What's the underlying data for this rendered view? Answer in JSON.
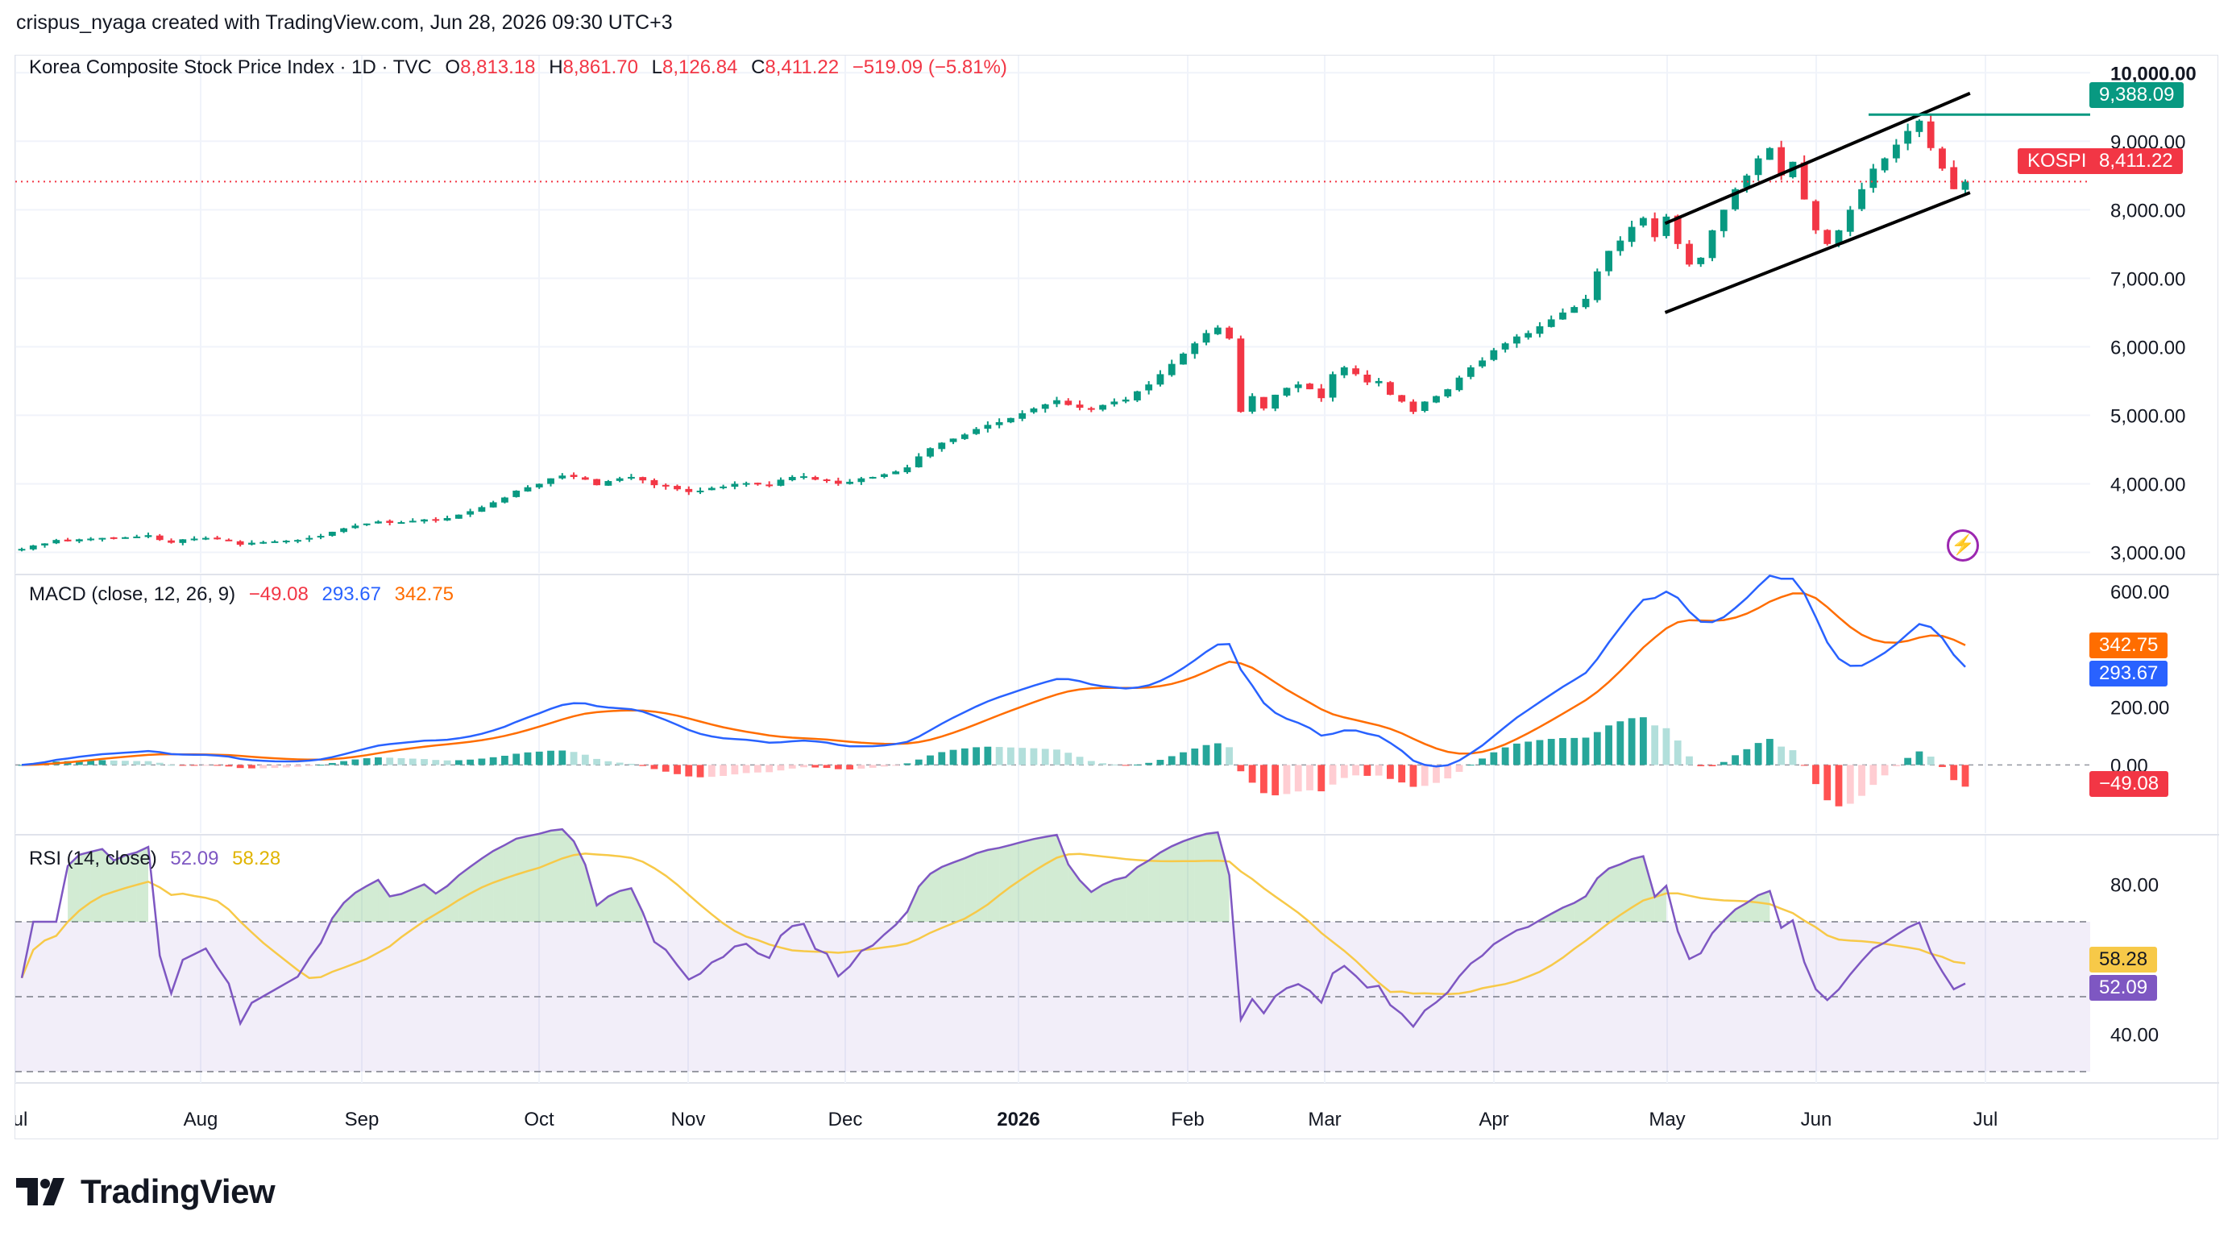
{
  "header": {
    "note": "crispus_nyaga created with TradingView.com, Jun 28, 2026 09:30 UTC+3"
  },
  "price_legend": {
    "title": "Korea Composite Stock Price Index · 1D · TVC",
    "o_label": "O",
    "o_value": "8,813.18",
    "h_label": "H",
    "h_value": "8,861.70",
    "l_label": "L",
    "l_value": "8,126.84",
    "c_label": "C",
    "c_value": "8,411.22",
    "change": "−519.09 (−5.81%)"
  },
  "macd_legend": {
    "title": "MACD (close, 12, 26, 9)",
    "hist": "−49.08",
    "macd": "293.67",
    "signal": "342.75"
  },
  "rsi_legend": {
    "title": "RSI (14, close)",
    "rsi": "52.09",
    "ma": "58.28"
  },
  "tags": {
    "resistance": "9,388.09",
    "symbol": "KOSPI",
    "last_price": "8,411.22",
    "macd_signal": "342.75",
    "macd_line": "293.67",
    "macd_hist": "−49.08",
    "rsi_ma": "58.28",
    "rsi_value": "52.09"
  },
  "colors": {
    "up": "#089981",
    "down": "#f23645",
    "macd": "#2962ff",
    "signal": "#ff6d00",
    "rsi": "#7e57c2",
    "rsi_ma": "#f7c948",
    "resistance": "#089981"
  },
  "logo": {
    "text": "TradingView"
  },
  "lightning_icon": "lightning-icon",
  "chart_data": [
    {
      "type": "candlestick",
      "title": "Korea Composite Stock Price Index",
      "y_ticks": [
        "10,000.00",
        "9,000.00",
        "8,000.00",
        "7,000.00",
        "6,000.00",
        "5,000.00",
        "4,000.00",
        "3,000.00"
      ],
      "ylim": [
        2700,
        10250
      ],
      "x_ticks": [
        "Jul",
        "Aug",
        "Sep",
        "Oct",
        "Nov",
        "Dec",
        "2026",
        "Feb",
        "Mar",
        "Apr",
        "May",
        "Jun",
        "Jul"
      ],
      "closes": [
        3050,
        3100,
        3130,
        3180,
        3160,
        3190,
        3200,
        3210,
        3205,
        3220,
        3230,
        3250,
        3180,
        3140,
        3190,
        3200,
        3210,
        3190,
        3170,
        3110,
        3140,
        3150,
        3160,
        3170,
        3180,
        3210,
        3240,
        3300,
        3350,
        3390,
        3420,
        3450,
        3430,
        3440,
        3460,
        3480,
        3470,
        3500,
        3550,
        3600,
        3660,
        3730,
        3800,
        3900,
        3950,
        4000,
        4080,
        4120,
        4100,
        4060,
        3980,
        4040,
        4080,
        4100,
        4050,
        3980,
        3960,
        3920,
        3880,
        3900,
        3940,
        3960,
        4000,
        4010,
        3990,
        3980,
        4060,
        4100,
        4110,
        4060,
        4050,
        4000,
        4030,
        4080,
        4100,
        4140,
        4180,
        4240,
        4400,
        4520,
        4600,
        4660,
        4720,
        4800,
        4860,
        4900,
        4960,
        5030,
        5100,
        5160,
        5220,
        5150,
        5110,
        5080,
        5150,
        5200,
        5230,
        5350,
        5450,
        5600,
        5750,
        5900,
        6050,
        6200,
        6280,
        6120,
        5050,
        5280,
        5100,
        5300,
        5400,
        5450,
        5380,
        5250,
        5600,
        5700,
        5600,
        5480,
        5500,
        5300,
        5200,
        5050,
        5200,
        5280,
        5380,
        5550,
        5700,
        5800,
        5950,
        6050,
        6150,
        6200,
        6300,
        6400,
        6500,
        6580,
        6700,
        7100,
        7400,
        7550,
        7750,
        7880,
        7600,
        7900,
        7500,
        7200,
        7300,
        7700,
        8000,
        8300,
        8500,
        8750,
        8900,
        8500,
        8700,
        8150,
        7700,
        7500,
        7700,
        8000,
        8300,
        8600,
        8750,
        8950,
        9150,
        9300,
        8900,
        8600,
        8300,
        8411
      ],
      "channel_upper": [
        [
          8040,
          7800
        ],
        [
          9950,
          9700
        ]
      ],
      "channel_lower": [
        [
          8040,
          6500
        ],
        [
          9950,
          8250
        ]
      ],
      "resistance": 9388.09,
      "last_close": 8411.22
    },
    {
      "type": "macd",
      "title": "MACD (close, 12, 26, 9)",
      "y_ticks": [
        "600.00",
        "200.00",
        "0.00"
      ],
      "ylim": [
        -180,
        600
      ],
      "macd_last": 293.67,
      "signal_last": 342.75,
      "hist_last": -49.08
    },
    {
      "type": "rsi",
      "title": "RSI (14, close)",
      "y_ticks": [
        "80.00",
        "40.00"
      ],
      "ylim": [
        27,
        93
      ],
      "bands": [
        30,
        50,
        70
      ],
      "rsi_last": 52.09,
      "ma_last": 58.28
    }
  ]
}
